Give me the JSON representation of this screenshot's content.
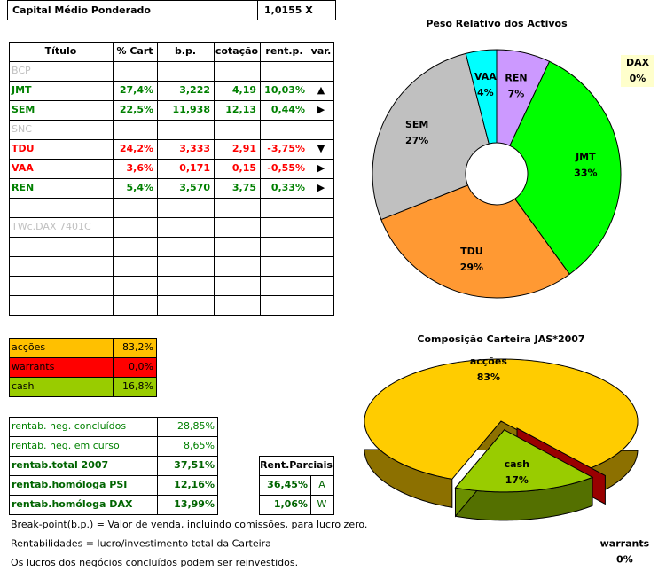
{
  "header": {
    "label": "Capital Médio Ponderado",
    "value": "1,0155 X"
  },
  "table": {
    "columns": [
      "Título",
      "% Cart",
      "b.p.",
      "cotação",
      "rent.p.",
      "var."
    ],
    "rows": [
      {
        "cells": [
          "BCP"
        ],
        "color": "#c0c0c0"
      },
      {
        "cells": [
          "JMT",
          "27,4%",
          "3,222",
          "4,19",
          "10,03%",
          "▲"
        ],
        "color": "#008000"
      },
      {
        "cells": [
          "SEM",
          "22,5%",
          "11,938",
          "12,13",
          "0,44%",
          "▶"
        ],
        "color": "#008000"
      },
      {
        "cells": [
          "SNC"
        ],
        "color": "#c0c0c0"
      },
      {
        "cells": [
          "TDU",
          "24,2%",
          "3,333",
          "2,91",
          "-3,75%",
          "▼"
        ],
        "color": "#ff0000"
      },
      {
        "cells": [
          "VAA",
          "3,6%",
          "0,171",
          "0,15",
          "-0,55%",
          "▶"
        ],
        "color": "#ff0000"
      },
      {
        "cells": [
          "REN",
          "5,4%",
          "3,570",
          "3,75",
          "0,33%",
          "▶"
        ],
        "color": "#008000"
      },
      {
        "cells": []
      },
      {
        "cells": [
          "TWc.DAX 7401C"
        ],
        "color": "#c0c0c0"
      },
      {
        "cells": []
      },
      {
        "cells": []
      },
      {
        "cells": []
      },
      {
        "cells": []
      }
    ]
  },
  "allocation": [
    {
      "label": "acções",
      "value": "83,2%",
      "color": "#ffc000"
    },
    {
      "label": "warrants",
      "value": "0,0%",
      "color": "#ff0000"
    },
    {
      "label": "cash",
      "value": "16,8%",
      "color": "#99cc00"
    }
  ],
  "returns": [
    {
      "label": "rentab. neg. concluídos",
      "value": "28,85%"
    },
    {
      "label": "rentab. neg. em curso",
      "value": "8,65%"
    },
    {
      "label": "rentab.total 2007",
      "value": "37,51%",
      "bold": true
    },
    {
      "label": "rentab.homóloga PSI",
      "value": "12,16%",
      "bold": true
    },
    {
      "label": "rentab.homóloga DAX",
      "value": "13,99%",
      "bold": true
    }
  ],
  "partials": {
    "title": "Rent.Parciais",
    "rows": [
      [
        "36,45%",
        "A"
      ],
      [
        "1,06%",
        "W"
      ]
    ]
  },
  "notes": [
    "Break-point(b.p.) = Valor de venda, incluindo comissões, para lucro zero.",
    "Rentabilidades = lucro/investimento total da Carteira",
    "Os lucros dos negócios concluídos podem ser reinvestidos."
  ],
  "chart_data": [
    {
      "type": "donut",
      "title": "Peso Relativo dos Activos",
      "categories": [
        "REN",
        "JMT",
        "TDU",
        "SEM",
        "VAA",
        "DAX"
      ],
      "values": [
        7,
        33,
        29,
        27,
        4,
        0
      ],
      "value_labels": [
        "7%",
        "33%",
        "29%",
        "27%",
        "4%",
        "0%"
      ],
      "colors": [
        "#cc99ff",
        "#00ff00",
        "#ff9933",
        "#c0c0c0",
        "#00ffff",
        "#ffffcc"
      ]
    },
    {
      "type": "pie3d",
      "title": "Composição Carteira JAS*2007",
      "categories": [
        "acções",
        "warrants",
        "cash"
      ],
      "values": [
        83,
        0,
        17
      ],
      "value_labels": [
        "83%",
        "0%",
        "17%"
      ],
      "colors": [
        "#ffcc00",
        "#990000",
        "#99cc00"
      ]
    }
  ]
}
